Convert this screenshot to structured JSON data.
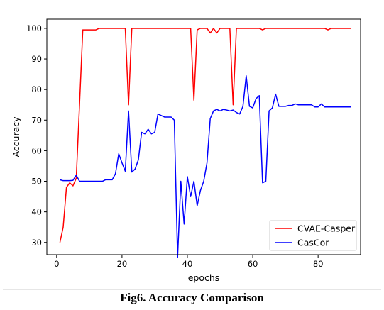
{
  "caption": "Fig6. Accuracy Comparison",
  "chart_data": {
    "type": "line",
    "title": "",
    "xlabel": "epochs",
    "ylabel": "Accuracy",
    "xlim": [
      -3,
      93
    ],
    "ylim": [
      26,
      103
    ],
    "xticks": [
      0,
      20,
      40,
      60,
      80
    ],
    "yticks": [
      30,
      40,
      50,
      60,
      70,
      80,
      90,
      100
    ],
    "grid": false,
    "legend_position": "lower-right",
    "series": [
      {
        "name": "CVAE-Casper",
        "color": "#ff0000",
        "x": [
          1,
          2,
          3,
          4,
          5,
          6,
          7,
          8,
          9,
          10,
          11,
          12,
          13,
          14,
          15,
          16,
          17,
          18,
          19,
          20,
          21,
          22,
          23,
          24,
          25,
          26,
          27,
          28,
          29,
          30,
          31,
          32,
          33,
          34,
          35,
          36,
          37,
          38,
          39,
          40,
          41,
          42,
          43,
          44,
          45,
          46,
          47,
          48,
          49,
          50,
          51,
          52,
          53,
          54,
          55,
          56,
          57,
          58,
          59,
          60,
          61,
          62,
          63,
          64,
          65,
          66,
          67,
          68,
          69,
          70,
          71,
          72,
          73,
          74,
          75,
          76,
          77,
          78,
          79,
          80,
          81,
          82,
          83,
          84,
          85,
          86,
          87,
          88,
          89,
          90
        ],
        "y": [
          30,
          35,
          48,
          49.5,
          48.5,
          51,
          75,
          99.5,
          99.5,
          99.5,
          99.5,
          99.5,
          100,
          100,
          100,
          100,
          100,
          100,
          100,
          100,
          100,
          75,
          100,
          100,
          100,
          100,
          100,
          100,
          100,
          100,
          100,
          100,
          100,
          100,
          100,
          100,
          100,
          100,
          100,
          100,
          100,
          76.5,
          99.5,
          100,
          100,
          100,
          98.5,
          100,
          98.5,
          100,
          100,
          100,
          100,
          75,
          100,
          100,
          100,
          100,
          100,
          100,
          100,
          100,
          99.5,
          100,
          100,
          100,
          100,
          100,
          100,
          100,
          100,
          100,
          100,
          100,
          100,
          100,
          100,
          100,
          100,
          100,
          100,
          100,
          99.5,
          100,
          100,
          100,
          100,
          100,
          100,
          100
        ]
      },
      {
        "name": "CasCor",
        "color": "#0000ff",
        "x": [
          1,
          2,
          3,
          4,
          5,
          6,
          7,
          8,
          9,
          10,
          11,
          12,
          13,
          14,
          15,
          16,
          17,
          18,
          19,
          20,
          21,
          22,
          23,
          24,
          25,
          26,
          27,
          28,
          29,
          30,
          31,
          32,
          33,
          34,
          35,
          36,
          37,
          38,
          39,
          40,
          41,
          42,
          43,
          44,
          45,
          46,
          47,
          48,
          49,
          50,
          51,
          52,
          53,
          54,
          55,
          56,
          57,
          58,
          59,
          60,
          61,
          62,
          63,
          64,
          65,
          66,
          67,
          68,
          69,
          70,
          71,
          72,
          73,
          74,
          75,
          76,
          77,
          78,
          79,
          80,
          81,
          82,
          83,
          84,
          85,
          86,
          87,
          88,
          89,
          90
        ],
        "y": [
          50.5,
          50.2,
          50.2,
          50.2,
          50.3,
          52,
          50,
          50,
          50,
          50,
          50,
          50,
          50,
          50,
          50.5,
          50.5,
          50.5,
          52.5,
          59,
          56,
          53.3,
          73,
          53,
          54,
          57,
          66,
          65.5,
          67,
          65.5,
          66,
          72,
          71.5,
          71,
          71,
          71,
          70,
          25,
          50,
          36,
          51.5,
          45,
          50,
          42,
          47,
          50,
          56,
          70.5,
          73,
          73.5,
          73,
          73.5,
          73.3,
          73,
          73.3,
          72.5,
          72,
          74.5,
          84.5,
          74.5,
          74,
          77,
          78,
          49.5,
          50,
          73,
          74,
          78.5,
          74.5,
          74.5,
          74.5,
          74.8,
          74.8,
          75.3,
          75,
          75,
          75,
          75,
          75,
          74.3,
          74.3,
          75.3,
          74.3,
          74.3,
          74.3,
          74.3,
          74.3,
          74.3,
          74.3,
          74.3,
          74.3
        ]
      }
    ]
  }
}
